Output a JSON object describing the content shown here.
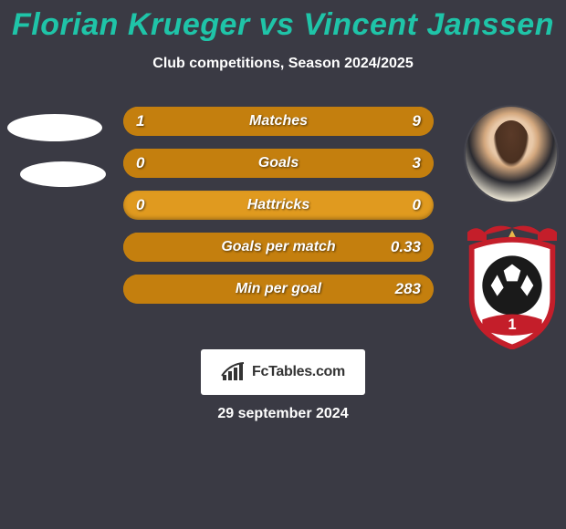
{
  "background_color": "#3a3a44",
  "accent_color": "#e09a1f",
  "bar_bg_color": "#e09a1f",
  "bar_fill_color": "#c47f0e",
  "title": "Florian Krueger vs Vincent Janssen",
  "title_color": "#1fc4a8",
  "title_fontsize": 34,
  "subtitle": "Club competitions, Season 2024/2025",
  "subtitle_fontsize": 16,
  "brand": "FcTables.com",
  "date": "29 september 2024",
  "crest_colors": {
    "outline": "#c41e2a",
    "inner": "#ffffff",
    "ball": "#1a1a1a",
    "ribbon": "#c41e2a"
  },
  "rows": [
    {
      "label": "Matches",
      "left": "1",
      "right": "9",
      "left_pct": 10,
      "right_pct": 90
    },
    {
      "label": "Goals",
      "left": "0",
      "right": "3",
      "left_pct": 0,
      "right_pct": 100
    },
    {
      "label": "Hattricks",
      "left": "0",
      "right": "0",
      "left_pct": 0,
      "right_pct": 0
    },
    {
      "label": "Goals per match",
      "left": "",
      "right": "0.33",
      "left_pct": 0,
      "right_pct": 100
    },
    {
      "label": "Min per goal",
      "left": "",
      "right": "283",
      "left_pct": 0,
      "right_pct": 100
    }
  ]
}
